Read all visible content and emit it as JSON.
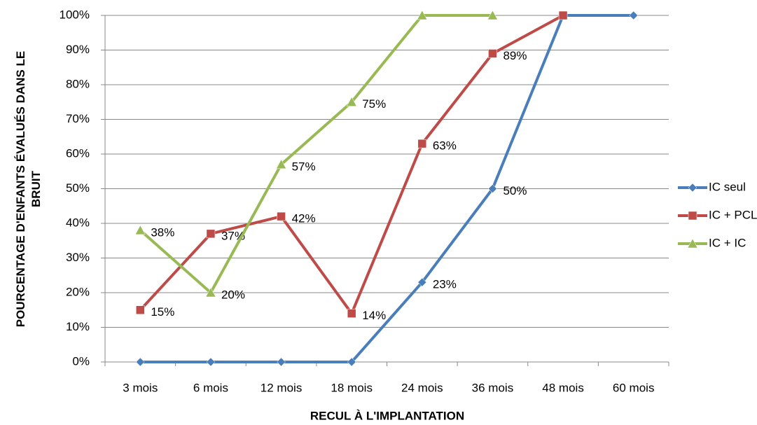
{
  "chart_data": {
    "type": "line",
    "y_label": "POURCENTAGE D'ENFANTS ÉVALUÉS DANS LE BRUIT",
    "x_label": "RECUL À L'IMPLANTATION",
    "categories": [
      "3 mois",
      "6 mois",
      "12 mois",
      "18 mois",
      "24 mois",
      "36 mois",
      "48 mois",
      "60 mois"
    ],
    "series": [
      {
        "name": "IC seul",
        "color": "#4a7ebb",
        "marker": "diamond",
        "values": [
          0,
          0,
          0,
          0,
          23,
          50,
          100,
          100
        ],
        "value_labels": [
          null,
          null,
          null,
          null,
          "23%",
          "50%",
          null,
          null
        ]
      },
      {
        "name": "IC + PCL",
        "color": "#be4b48",
        "marker": "square",
        "values": [
          15,
          37,
          42,
          14,
          63,
          89,
          100,
          null
        ],
        "value_labels": [
          "15%",
          "37%",
          "42%",
          "14%",
          "63%",
          "89%",
          null,
          null
        ]
      },
      {
        "name": "IC + IC",
        "color": "#98b954",
        "marker": "triangle",
        "values": [
          38,
          20,
          57,
          75,
          100,
          100,
          null,
          null
        ],
        "value_labels": [
          "38%",
          "20%",
          "57%",
          "75%",
          null,
          null,
          null,
          null
        ]
      }
    ],
    "ylim": [
      0,
      100
    ],
    "yticks": [
      {
        "value": 0,
        "label": "0%"
      },
      {
        "value": 10,
        "label": "10%"
      },
      {
        "value": 20,
        "label": "20%"
      },
      {
        "value": 30,
        "label": "30%"
      },
      {
        "value": 40,
        "label": "40%"
      },
      {
        "value": 50,
        "label": "50%"
      },
      {
        "value": 60,
        "label": "60%"
      },
      {
        "value": 70,
        "label": "70%"
      },
      {
        "value": 80,
        "label": "80%"
      },
      {
        "value": 90,
        "label": "90%"
      },
      {
        "value": 100,
        "label": "100%"
      }
    ],
    "grid": true,
    "legend": "right"
  }
}
